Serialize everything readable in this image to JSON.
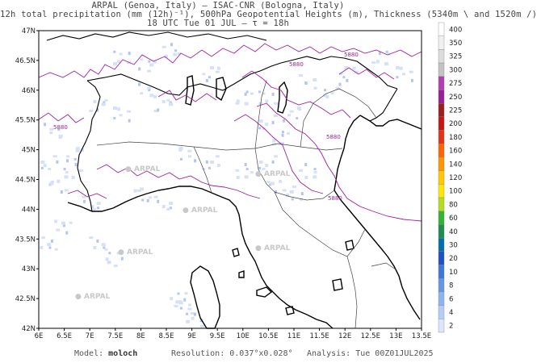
{
  "header": {
    "line1": "ARPAL (Genoa, Italy)  —  ISAC-CNR (Bologna, Italy)",
    "line2": "12h total precipitation (mm (12h)⁻¹), 500hPa Geopotential Heights (m), Thickness (5340m \\ and 1520m /)",
    "line3": "18 UTC Tue 01 JUL   —   τ = 18h"
  },
  "axes": {
    "lat_labels": [
      "47N",
      "46.5N",
      "46N",
      "45.5N",
      "45N",
      "44.5N",
      "44N",
      "43.5N",
      "43N",
      "42.5N",
      "42N"
    ],
    "lon_labels": [
      "6E",
      "6.5E",
      "7E",
      "7.5E",
      "8E",
      "8.5E",
      "9E",
      "9.5E",
      "10E",
      "10.5E",
      "11E",
      "11.5E",
      "12E",
      "12.5E",
      "13E",
      "13.5E"
    ]
  },
  "colorbar": {
    "labels": [
      "400",
      "350",
      "325",
      "300",
      "275",
      "250",
      "225",
      "200",
      "180",
      "160",
      "140",
      "120",
      "100",
      "80",
      "60",
      "40",
      "30",
      "20",
      "10",
      "8",
      "6",
      "4",
      "2"
    ],
    "colors": [
      "#ffffff",
      "#f0f0f0",
      "#dcdcdc",
      "#c3c3c3",
      "#b43cb4",
      "#9a1e9a",
      "#9a1e1e",
      "#c81414",
      "#e63214",
      "#ff6400",
      "#ff9600",
      "#ffc800",
      "#ffe600",
      "#b4dc1e",
      "#32b432",
      "#1e8c50",
      "#006eaa",
      "#1e50c8",
      "#3c78dc",
      "#6496e6",
      "#8cb4f0",
      "#b4cdf5",
      "#dce6fa"
    ]
  },
  "watermark": "ARPAL",
  "contour_label": "5880",
  "footer": {
    "model_label": "Model:",
    "model_value": "moloch",
    "resolution_label": "Resolution:",
    "resolution_value": "0.037°x0.028°",
    "analysis_label": "Analysis:",
    "analysis_value": "Tue 00Z01JUL2025"
  }
}
